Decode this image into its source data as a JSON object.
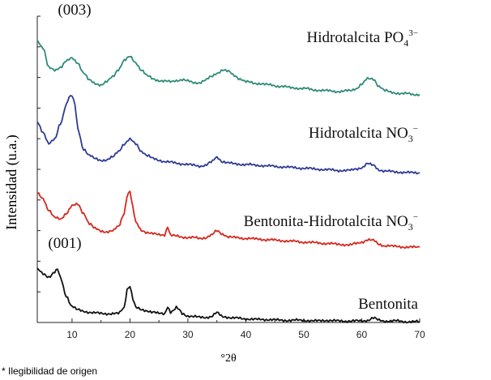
{
  "footnote": "* Ilegibilidad de origen",
  "chart_data": {
    "type": "line",
    "title": "",
    "xlabel": "°2θ",
    "ylabel": "Intensidad (u.a.)",
    "xlim": [
      4,
      70
    ],
    "xticks": [
      10,
      20,
      30,
      40,
      50,
      60,
      70
    ],
    "ytick_count": 11,
    "grid": false,
    "annotations": [
      {
        "text": "(003)",
        "x": 10,
        "series": "Hidrotalcita PO4"
      },
      {
        "text": "(001)",
        "x": 8,
        "series": "Bentonita"
      }
    ],
    "series": [
      {
        "name": "Hidrotalcita PO4",
        "label": "Hidrotalcita PO",
        "label_sub": "4",
        "label_sup": "3−",
        "color": "#2e8b78",
        "offset": 3,
        "x": [
          4,
          5,
          6,
          7,
          8,
          9,
          10,
          11,
          12,
          13,
          14,
          15,
          16,
          17,
          18,
          19,
          20,
          21,
          22,
          23,
          24,
          25,
          26,
          27,
          28,
          29,
          30,
          31,
          32,
          33,
          34,
          35,
          36,
          37,
          38,
          39,
          40,
          42,
          44,
          46,
          48,
          50,
          52,
          54,
          56,
          58,
          59,
          60,
          61,
          62,
          63,
          64,
          65,
          66,
          67,
          68,
          69,
          70
        ],
        "y": [
          0.82,
          0.72,
          0.45,
          0.42,
          0.46,
          0.54,
          0.58,
          0.52,
          0.38,
          0.28,
          0.24,
          0.22,
          0.26,
          0.33,
          0.43,
          0.55,
          0.6,
          0.52,
          0.42,
          0.34,
          0.3,
          0.28,
          0.27,
          0.26,
          0.28,
          0.29,
          0.27,
          0.25,
          0.25,
          0.28,
          0.33,
          0.38,
          0.42,
          0.4,
          0.35,
          0.3,
          0.26,
          0.24,
          0.22,
          0.2,
          0.18,
          0.17,
          0.15,
          0.14,
          0.13,
          0.14,
          0.17,
          0.23,
          0.3,
          0.3,
          0.2,
          0.14,
          0.12,
          0.11,
          0.1,
          0.1,
          0.09,
          0.09
        ]
      },
      {
        "name": "Hidrotalcita NO3",
        "label": "Hidrotalcita NO",
        "label_sub": "3",
        "label_sup": "−",
        "color": "#2e3b96",
        "offset": 2,
        "x": [
          4,
          5,
          6,
          7,
          8,
          9,
          9.5,
          10,
          10.5,
          11,
          12,
          13,
          14,
          15,
          16,
          17,
          18,
          19,
          20,
          21,
          22,
          23,
          24,
          25,
          26,
          27,
          28,
          29,
          30,
          31,
          32,
          33,
          34,
          35,
          36,
          37,
          38,
          40,
          42,
          44,
          46,
          48,
          50,
          52,
          54,
          56,
          58,
          59,
          60,
          61,
          62,
          63,
          64,
          66,
          68,
          70
        ],
        "y": [
          0.72,
          0.58,
          0.42,
          0.48,
          0.7,
          0.95,
          1.05,
          1.07,
          0.95,
          0.62,
          0.35,
          0.26,
          0.22,
          0.2,
          0.2,
          0.24,
          0.32,
          0.42,
          0.48,
          0.42,
          0.32,
          0.26,
          0.22,
          0.2,
          0.18,
          0.17,
          0.16,
          0.15,
          0.14,
          0.13,
          0.12,
          0.13,
          0.17,
          0.24,
          0.18,
          0.16,
          0.15,
          0.14,
          0.13,
          0.12,
          0.11,
          0.1,
          0.09,
          0.08,
          0.07,
          0.06,
          0.06,
          0.08,
          0.1,
          0.15,
          0.13,
          0.07,
          0.05,
          0.04,
          0.03,
          0.03
        ]
      },
      {
        "name": "Bentonita-Hidrotalcita NO3",
        "label": "Bentonita-Hidrotalcita NO",
        "label_sub": "3",
        "label_sup": "−",
        "color": "#d6281e",
        "offset": 1,
        "x": [
          4,
          5,
          6,
          7,
          8,
          9,
          10,
          11,
          12,
          13,
          14,
          15,
          16,
          17,
          18,
          19,
          19.5,
          20,
          20.5,
          21,
          22,
          23,
          24,
          25,
          26,
          26.5,
          27,
          28,
          29,
          30,
          31,
          32,
          33,
          34,
          35,
          36,
          37,
          38,
          40,
          42,
          44,
          46,
          48,
          50,
          52,
          54,
          56,
          58,
          59,
          60,
          61,
          62,
          63,
          64,
          66,
          68,
          70
        ],
        "y": [
          0.75,
          0.68,
          0.52,
          0.42,
          0.4,
          0.48,
          0.58,
          0.6,
          0.48,
          0.34,
          0.27,
          0.24,
          0.23,
          0.24,
          0.3,
          0.48,
          0.72,
          0.78,
          0.55,
          0.35,
          0.25,
          0.22,
          0.2,
          0.19,
          0.19,
          0.3,
          0.18,
          0.17,
          0.16,
          0.15,
          0.15,
          0.14,
          0.15,
          0.18,
          0.24,
          0.2,
          0.16,
          0.15,
          0.14,
          0.13,
          0.12,
          0.11,
          0.1,
          0.09,
          0.08,
          0.07,
          0.06,
          0.05,
          0.07,
          0.09,
          0.12,
          0.11,
          0.06,
          0.04,
          0.03,
          0.02,
          0.02
        ]
      },
      {
        "name": "Bentonita",
        "label": "Bentonita",
        "label_sub": "",
        "label_sup": "",
        "color": "#111111",
        "offset": 0,
        "x": [
          4,
          5,
          6,
          7,
          7.5,
          8,
          9,
          10,
          11,
          12,
          13,
          14,
          15,
          16,
          17,
          18,
          19,
          19.5,
          20,
          20.5,
          21,
          22,
          23,
          24,
          25,
          26,
          26.5,
          27,
          27.5,
          28,
          28.5,
          29,
          30,
          31,
          32,
          33,
          34,
          35,
          36,
          38,
          40,
          42,
          44,
          46,
          48,
          50,
          52,
          54,
          56,
          58,
          60,
          61,
          62,
          63,
          64,
          66,
          68,
          70
        ],
        "y": [
          0.72,
          0.66,
          0.62,
          0.68,
          0.72,
          0.6,
          0.36,
          0.22,
          0.17,
          0.15,
          0.14,
          0.13,
          0.12,
          0.12,
          0.12,
          0.12,
          0.2,
          0.45,
          0.5,
          0.32,
          0.2,
          0.17,
          0.16,
          0.14,
          0.12,
          0.12,
          0.22,
          0.14,
          0.16,
          0.2,
          0.17,
          0.12,
          0.09,
          0.08,
          0.07,
          0.07,
          0.08,
          0.13,
          0.08,
          0.06,
          0.05,
          0.04,
          0.04,
          0.03,
          0.03,
          0.03,
          0.02,
          0.03,
          0.02,
          0.02,
          0.02,
          0.03,
          0.06,
          0.03,
          0.02,
          0.02,
          0.01,
          0.01
        ]
      }
    ]
  }
}
